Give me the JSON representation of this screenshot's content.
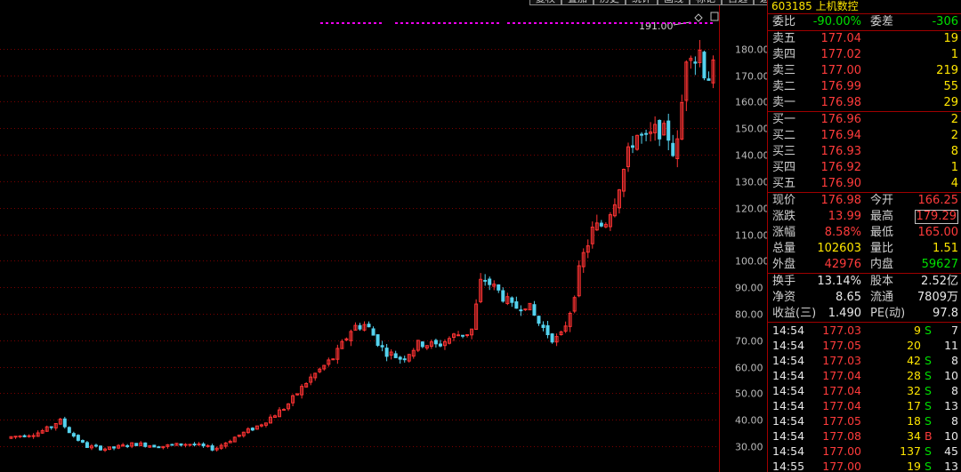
{
  "toolbar": {
    "items": [
      "复权",
      "叠加",
      "历史",
      "统计",
      "画线",
      "标记",
      "自选",
      "返回"
    ]
  },
  "chart_data": {
    "type": "candlestick",
    "y_ticks": [
      30,
      40,
      50,
      60,
      70,
      80,
      90,
      100,
      110,
      120,
      130,
      140,
      150,
      160,
      170,
      180
    ],
    "ylim": [
      24,
      193
    ],
    "peak_label": "191.00",
    "colors": {
      "up": "#ff3333",
      "down": "#54d2ee",
      "grid": "#7a0000",
      "marker": "#ee00ee",
      "axis_text": "#bbbbbb"
    }
  },
  "panel": {
    "header": {
      "code": "603185",
      "name": "上机数控"
    },
    "weibi": {
      "label": "委比",
      "value": "-90.00%",
      "diff_label": "委差",
      "diff": "-306"
    },
    "sell": [
      {
        "label": "卖五",
        "price": "177.04",
        "vol": "19"
      },
      {
        "label": "卖四",
        "price": "177.02",
        "vol": "1"
      },
      {
        "label": "卖三",
        "price": "177.00",
        "vol": "219"
      },
      {
        "label": "卖二",
        "price": "176.99",
        "vol": "55"
      },
      {
        "label": "卖一",
        "price": "176.98",
        "vol": "29"
      }
    ],
    "buy": [
      {
        "label": "买一",
        "price": "176.96",
        "vol": "2"
      },
      {
        "label": "买二",
        "price": "176.94",
        "vol": "2"
      },
      {
        "label": "买三",
        "price": "176.93",
        "vol": "8"
      },
      {
        "label": "买四",
        "price": "176.92",
        "vol": "1"
      },
      {
        "label": "买五",
        "price": "176.90",
        "vol": "4"
      }
    ],
    "quote": [
      {
        "l1": "现价",
        "v1": "176.98",
        "l2": "今开",
        "v2": "166.25"
      },
      {
        "l1": "涨跌",
        "v1": "13.99",
        "l2": "最高",
        "v2": "179.29"
      },
      {
        "l1": "涨幅",
        "v1": "8.58%",
        "l2": "最低",
        "v2": "165.00"
      },
      {
        "l1": "总量",
        "v1": "102603",
        "l2": "量比",
        "v2": "1.51"
      },
      {
        "l1": "外盘",
        "v1": "42976",
        "l2": "内盘",
        "v2": "59627"
      }
    ],
    "fund": [
      {
        "l1": "换手",
        "v1": "13.14%",
        "l2": "股本",
        "v2": "2.52亿"
      },
      {
        "l1": "净资",
        "v1": "8.65",
        "l2": "流通",
        "v2": "7809万"
      },
      {
        "l1": "收益(三)",
        "v1": "1.490",
        "l2": "PE(动)",
        "v2": "97.8"
      }
    ],
    "trades": [
      {
        "time": "14:54",
        "price": "177.03",
        "vol": "9",
        "side": "S",
        "count": "7"
      },
      {
        "time": "14:54",
        "price": "177.05",
        "vol": "20",
        "side": "",
        "count": "11"
      },
      {
        "time": "14:54",
        "price": "177.03",
        "vol": "42",
        "side": "S",
        "count": "8"
      },
      {
        "time": "14:54",
        "price": "177.04",
        "vol": "28",
        "side": "S",
        "count": "10"
      },
      {
        "time": "14:54",
        "price": "177.04",
        "vol": "32",
        "side": "S",
        "count": "8"
      },
      {
        "time": "14:54",
        "price": "177.04",
        "vol": "17",
        "side": "S",
        "count": "13"
      },
      {
        "time": "14:54",
        "price": "177.05",
        "vol": "18",
        "side": "S",
        "count": "8"
      },
      {
        "time": "14:54",
        "price": "177.08",
        "vol": "34",
        "side": "B",
        "count": "10"
      },
      {
        "time": "14:54",
        "price": "177.00",
        "vol": "137",
        "side": "S",
        "count": "45"
      },
      {
        "time": "14:55",
        "price": "177.00",
        "vol": "19",
        "side": "S",
        "count": "13"
      }
    ]
  }
}
